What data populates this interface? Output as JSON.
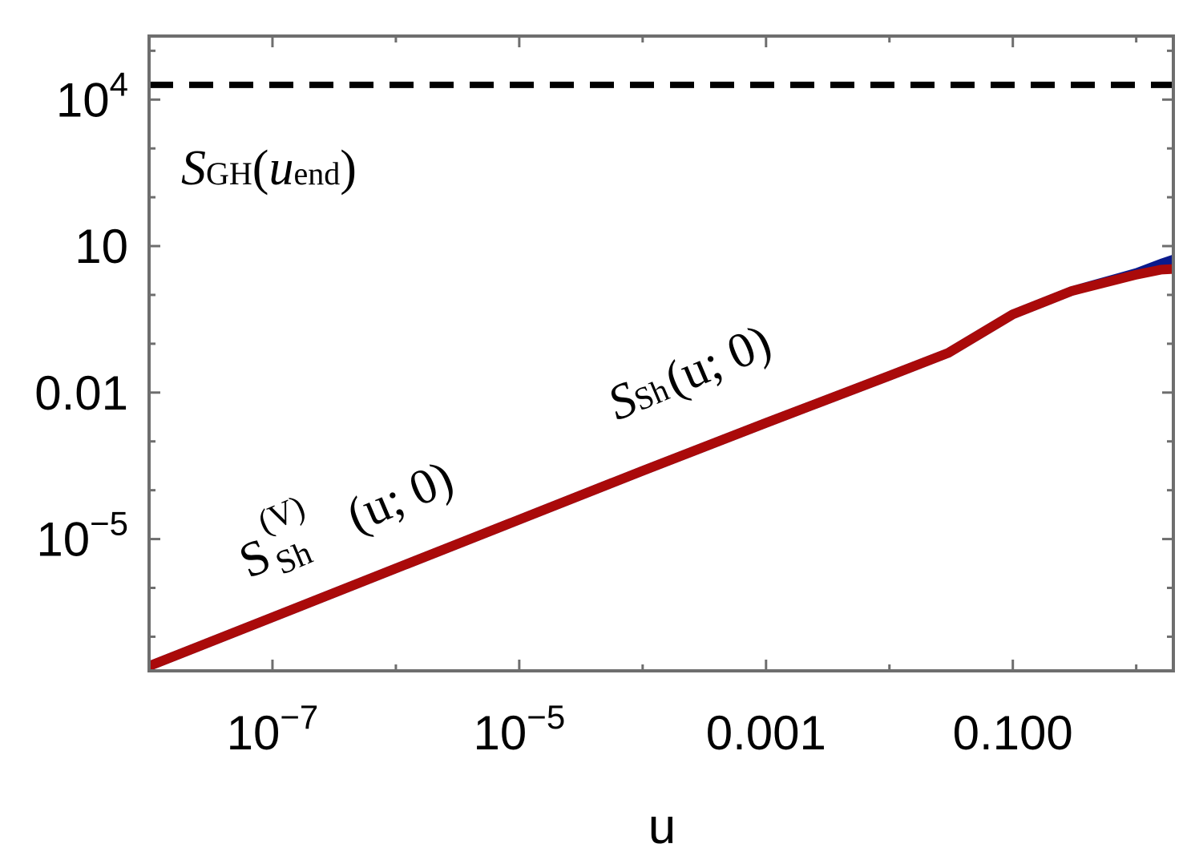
{
  "chart_data": {
    "type": "line",
    "xlabel": "u",
    "ylabel": "",
    "x_scale": "log",
    "y_scale": "log",
    "xlim": [
      1e-08,
      2
    ],
    "ylim": [
      2e-08,
      200000.0
    ],
    "grid": false,
    "x_ticks": [
      {
        "value": 1e-07,
        "base": "10",
        "exp": "−7"
      },
      {
        "value": 1e-05,
        "base": "10",
        "exp": "−5"
      },
      {
        "value": 0.001,
        "base": "0.001",
        "exp": ""
      },
      {
        "value": 0.1,
        "base": "0.100",
        "exp": ""
      }
    ],
    "y_ticks": [
      {
        "value": 10000.0,
        "base": "10",
        "exp": "4"
      },
      {
        "value": 10,
        "base": "10",
        "exp": ""
      },
      {
        "value": 0.01,
        "base": "0.01",
        "exp": ""
      },
      {
        "value": 1e-05,
        "base": "10",
        "exp": "−5"
      }
    ],
    "series": [
      {
        "color": "#0a1a8c",
        "style": "solid",
        "x": [
          1e-08,
          1e-07,
          1e-06,
          1e-05,
          0.0001,
          0.001,
          0.01,
          0.03,
          0.1,
          0.3,
          1,
          1.6,
          2
        ],
        "y": [
          2.5e-08,
          2.5e-07,
          2.5e-06,
          2.5e-05,
          0.00025,
          0.0024,
          0.022,
          0.065,
          0.4,
          1.2,
          2.8,
          4.4,
          5.3
        ]
      },
      {
        "color": "#aa0a0a",
        "style": "solid",
        "x": [
          1e-08,
          1e-07,
          1e-06,
          1e-05,
          0.0001,
          0.001,
          0.01,
          0.03,
          0.1,
          0.3,
          1,
          1.6,
          2
        ],
        "y": [
          2.5e-08,
          2.5e-07,
          2.5e-06,
          2.5e-05,
          0.00025,
          0.0024,
          0.022,
          0.065,
          0.4,
          1.2,
          2.6,
          3.3,
          3.4
        ]
      },
      {
        "color": "#000000",
        "style": "dashed",
        "x": [
          1e-08,
          2
        ],
        "y": [
          20000,
          20000
        ]
      }
    ],
    "annotations": {
      "s_gh": {
        "S": "S",
        "sub": "GH",
        "open": "(",
        "u": "u",
        "usub": "end",
        "close": ")"
      },
      "s_sh": {
        "S": "S",
        "sub": "Sh",
        "arg": "(u; 0)"
      },
      "s_sh_v": {
        "S": "S",
        "sub": "Sh",
        "sup": "(V)",
        "arg": "(u; 0)"
      }
    }
  }
}
